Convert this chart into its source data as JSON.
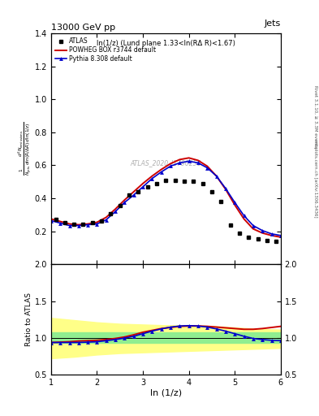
{
  "title_top": "13000 GeV pp",
  "title_right": "Jets",
  "annotation": "ln(1/z) (Lund plane 1.33<ln(RΔ R)<1.67)",
  "watermark": "ATLAS_2020_I1790256",
  "ylabel_main": "$\\frac{1}{N_{\\mathrm{jets}}}\\frac{d^2 N_{\\mathrm{emissions}}}{d\\ln (R/\\Delta R)\\, d\\ln (1/z)}$",
  "ylabel_ratio": "Ratio to ATLAS",
  "xlabel": "ln (1/z)",
  "right_label_top": "Rivet 3.1.10, ≥ 3.3M events",
  "right_label_bot": "mcplots.cern.ch [arXiv:1306.3436]",
  "xlim": [
    1.0,
    6.0
  ],
  "ylim_main": [
    0.0,
    1.4
  ],
  "ylim_ratio": [
    0.5,
    2.0
  ],
  "atlas_x": [
    1.1,
    1.3,
    1.5,
    1.7,
    1.9,
    2.1,
    2.3,
    2.5,
    2.7,
    2.9,
    3.1,
    3.3,
    3.5,
    3.7,
    3.9,
    4.1,
    4.3,
    4.5,
    4.7,
    4.9,
    5.1,
    5.3,
    5.5,
    5.7,
    5.9
  ],
  "atlas_y": [
    0.275,
    0.255,
    0.245,
    0.245,
    0.255,
    0.265,
    0.305,
    0.355,
    0.42,
    0.44,
    0.47,
    0.49,
    0.51,
    0.51,
    0.505,
    0.505,
    0.49,
    0.44,
    0.38,
    0.24,
    0.19,
    0.165,
    0.155,
    0.145,
    0.14
  ],
  "powheg_x": [
    1.0,
    1.2,
    1.4,
    1.6,
    1.8,
    2.0,
    2.2,
    2.4,
    2.6,
    2.8,
    3.0,
    3.2,
    3.4,
    3.6,
    3.8,
    4.0,
    4.2,
    4.4,
    4.6,
    4.8,
    5.0,
    5.2,
    5.4,
    5.6,
    5.8,
    6.0
  ],
  "powheg_y": [
    0.275,
    0.26,
    0.245,
    0.24,
    0.245,
    0.255,
    0.285,
    0.335,
    0.39,
    0.44,
    0.49,
    0.535,
    0.575,
    0.61,
    0.635,
    0.645,
    0.63,
    0.595,
    0.535,
    0.455,
    0.36,
    0.275,
    0.215,
    0.19,
    0.175,
    0.165
  ],
  "pythia_x": [
    1.0,
    1.2,
    1.4,
    1.6,
    1.8,
    2.0,
    2.2,
    2.4,
    2.6,
    2.8,
    3.0,
    3.2,
    3.4,
    3.6,
    3.8,
    4.0,
    4.2,
    4.4,
    4.6,
    4.8,
    5.0,
    5.2,
    5.4,
    5.6,
    5.8,
    6.0
  ],
  "pythia_y": [
    0.265,
    0.25,
    0.235,
    0.235,
    0.24,
    0.245,
    0.27,
    0.32,
    0.375,
    0.42,
    0.47,
    0.52,
    0.56,
    0.595,
    0.615,
    0.625,
    0.615,
    0.585,
    0.535,
    0.46,
    0.375,
    0.295,
    0.235,
    0.205,
    0.185,
    0.175
  ],
  "ratio_powheg_y": [
    0.935,
    0.94,
    0.945,
    0.955,
    0.96,
    0.965,
    0.975,
    0.99,
    1.01,
    1.04,
    1.075,
    1.1,
    1.125,
    1.14,
    1.155,
    1.16,
    1.16,
    1.155,
    1.145,
    1.135,
    1.125,
    1.115,
    1.115,
    1.125,
    1.14,
    1.155
  ],
  "ratio_pythia_y": [
    0.935,
    0.935,
    0.935,
    0.935,
    0.94,
    0.945,
    0.96,
    0.975,
    0.995,
    1.02,
    1.055,
    1.09,
    1.12,
    1.145,
    1.16,
    1.165,
    1.16,
    1.145,
    1.12,
    1.09,
    1.055,
    1.02,
    0.99,
    0.975,
    0.965,
    0.96
  ],
  "green_band_upper": 1.07,
  "green_band_lower": 0.93,
  "yellow_band_x": [
    1.0,
    1.5,
    2.0,
    2.5,
    3.0,
    3.5,
    4.0,
    4.5,
    5.0,
    5.5,
    6.0
  ],
  "yellow_band_upper": [
    1.27,
    1.24,
    1.21,
    1.19,
    1.18,
    1.17,
    1.17,
    1.16,
    1.14,
    1.12,
    1.11
  ],
  "yellow_band_lower": [
    0.72,
    0.74,
    0.77,
    0.79,
    0.8,
    0.81,
    0.82,
    0.83,
    0.84,
    0.85,
    0.86
  ],
  "atlas_color": "black",
  "powheg_color": "#cc0000",
  "pythia_color": "#0000cc",
  "green_color": "#90ee90",
  "yellow_color": "#ffff88",
  "yticks_main": [
    0.2,
    0.4,
    0.6,
    0.8,
    1.0,
    1.2,
    1.4
  ],
  "yticks_ratio": [
    0.5,
    1.0,
    1.5,
    2.0
  ],
  "xticks": [
    1,
    2,
    3,
    4,
    5,
    6
  ]
}
